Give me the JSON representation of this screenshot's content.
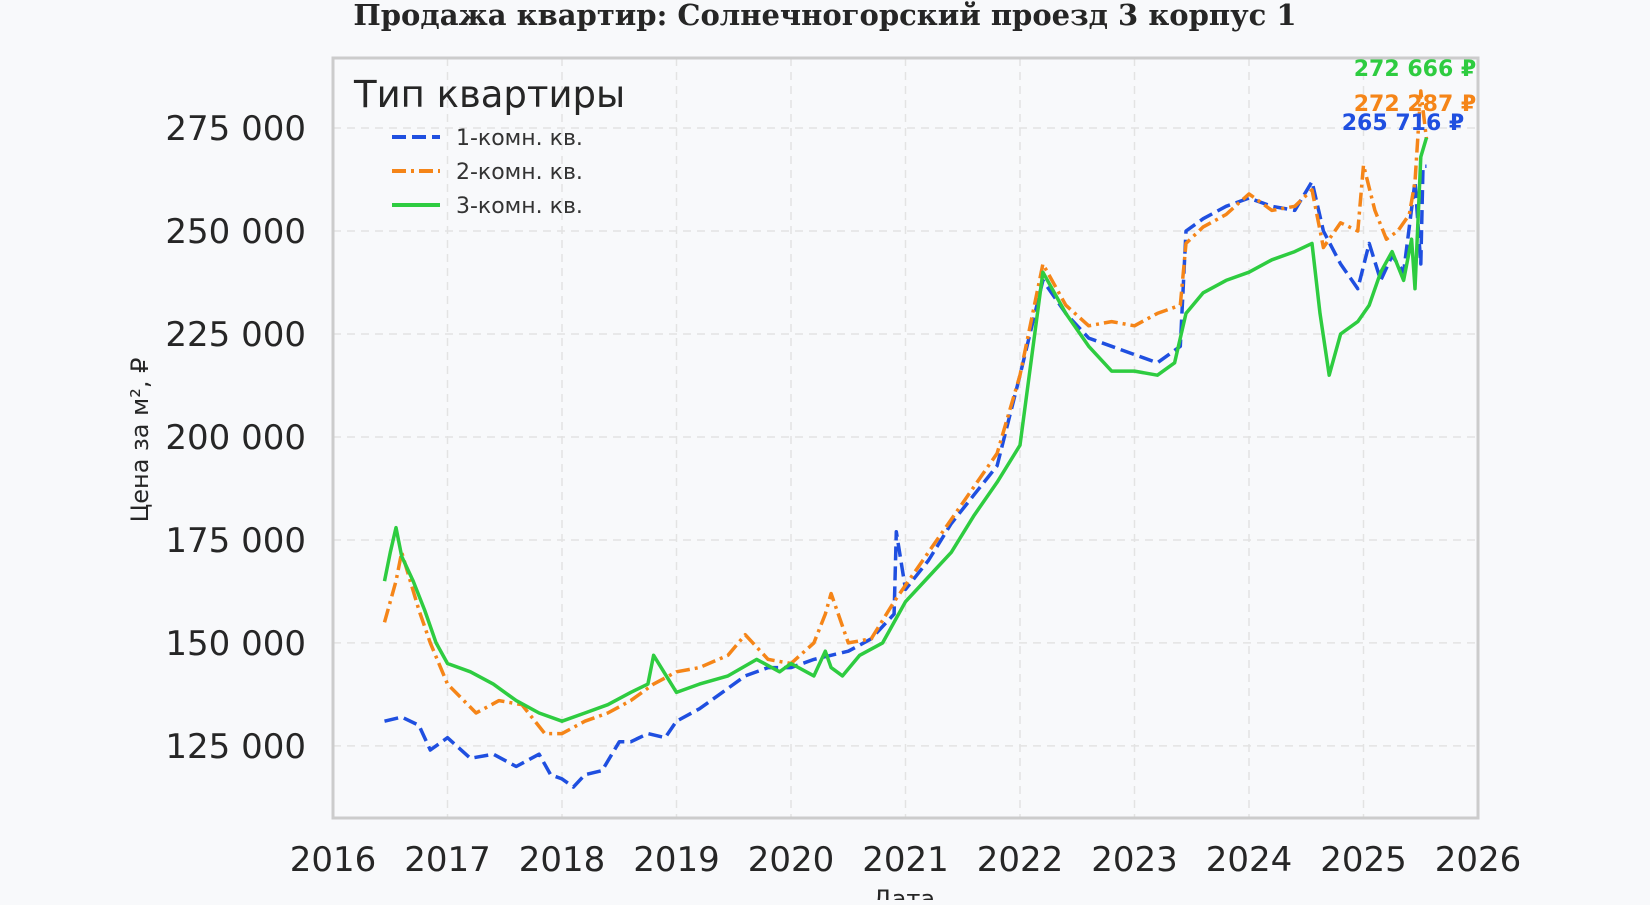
{
  "chart_data": {
    "type": "line",
    "title": "Продажа квартир: Солнечногорский проезд 3 корпус 1",
    "xlabel": "Дата",
    "ylabel": "Цена за м², ₽",
    "xlim": [
      2016,
      2026
    ],
    "ylim": [
      107500,
      292000
    ],
    "x_ticks": [
      "2016",
      "2017",
      "2018",
      "2019",
      "2020",
      "2021",
      "2022",
      "2023",
      "2024",
      "2025",
      "2026"
    ],
    "y_ticks": [
      "125 000",
      "150 000",
      "175 000",
      "200 000",
      "225 000",
      "250 000",
      "275 000"
    ],
    "y_tick_values": [
      125000,
      150000,
      175000,
      200000,
      225000,
      250000,
      275000
    ],
    "grid": true,
    "legend": {
      "title": "Тип квартиры",
      "position": "top-left"
    },
    "series": [
      {
        "name": "1-комн. кв.",
        "color": "#1f4fe0",
        "style": "dashed",
        "end_label": "265 716 ₽",
        "x": [
          2016.45,
          2016.6,
          2016.75,
          2016.85,
          2017.0,
          2017.2,
          2017.4,
          2017.6,
          2017.8,
          2017.9,
          2018.0,
          2018.1,
          2018.2,
          2018.35,
          2018.5,
          2018.6,
          2018.75,
          2018.9,
          2019.0,
          2019.2,
          2019.4,
          2019.6,
          2019.8,
          2020.0,
          2020.2,
          2020.35,
          2020.5,
          2020.7,
          2020.9,
          2020.92,
          2021.0,
          2021.2,
          2021.4,
          2021.6,
          2021.8,
          2022.0,
          2022.2,
          2022.4,
          2022.6,
          2022.8,
          2023.0,
          2023.2,
          2023.4,
          2023.45,
          2023.6,
          2023.8,
          2024.0,
          2024.2,
          2024.4,
          2024.55,
          2024.65,
          2024.8,
          2024.95,
          2025.05,
          2025.15,
          2025.25,
          2025.35,
          2025.45,
          2025.5,
          2025.52,
          2025.55
        ],
        "y": [
          131000,
          132000,
          130000,
          124000,
          127000,
          122000,
          123000,
          120000,
          123000,
          118000,
          117000,
          115000,
          118000,
          119000,
          126000,
          126000,
          128000,
          127000,
          131000,
          134000,
          138000,
          142000,
          144000,
          144000,
          146000,
          147000,
          148000,
          151000,
          157000,
          177000,
          163000,
          170000,
          179000,
          186000,
          193000,
          215000,
          238000,
          230000,
          224000,
          222000,
          220000,
          218000,
          222000,
          250000,
          253000,
          256000,
          258000,
          256000,
          255000,
          262000,
          250000,
          242000,
          236000,
          247000,
          238000,
          244000,
          240000,
          262000,
          242000,
          265716,
          265716
        ]
      },
      {
        "name": "2-комн. кв.",
        "color": "#f58518",
        "style": "dashdot",
        "end_label": "272 287 ₽",
        "x": [
          2016.45,
          2016.55,
          2016.6,
          2016.75,
          2016.85,
          2017.0,
          2017.25,
          2017.45,
          2017.65,
          2017.85,
          2018.0,
          2018.2,
          2018.4,
          2018.6,
          2018.8,
          2019.0,
          2019.2,
          2019.45,
          2019.6,
          2019.8,
          2020.0,
          2020.2,
          2020.3,
          2020.35,
          2020.5,
          2020.7,
          2020.9,
          2021.0,
          2021.2,
          2021.4,
          2021.6,
          2021.8,
          2022.0,
          2022.2,
          2022.4,
          2022.6,
          2022.8,
          2023.0,
          2023.2,
          2023.4,
          2023.45,
          2023.6,
          2023.8,
          2024.0,
          2024.2,
          2024.4,
          2024.55,
          2024.65,
          2024.8,
          2024.95,
          2025.0,
          2025.1,
          2025.2,
          2025.3,
          2025.4,
          2025.45,
          2025.5,
          2025.55
        ],
        "y": [
          155000,
          165000,
          172000,
          158000,
          150000,
          140000,
          133000,
          136000,
          135000,
          128000,
          128000,
          131000,
          133000,
          136000,
          140000,
          143000,
          144000,
          147000,
          152000,
          146000,
          145000,
          150000,
          157000,
          162000,
          150000,
          151000,
          160000,
          164000,
          172000,
          180000,
          188000,
          196000,
          215000,
          242000,
          232000,
          227000,
          228000,
          227000,
          230000,
          232000,
          247000,
          251000,
          254000,
          259000,
          255000,
          256000,
          260000,
          246000,
          252000,
          250000,
          266000,
          255000,
          248000,
          250000,
          254000,
          262000,
          284000,
          272287
        ]
      },
      {
        "name": "3-комн. кв.",
        "color": "#2ecc40",
        "style": "solid",
        "end_label": "272 666 ₽",
        "x": [
          2016.45,
          2016.5,
          2016.55,
          2016.6,
          2016.7,
          2016.8,
          2016.9,
          2017.0,
          2017.2,
          2017.4,
          2017.6,
          2017.8,
          2018.0,
          2018.2,
          2018.4,
          2018.6,
          2018.75,
          2018.8,
          2019.0,
          2019.2,
          2019.45,
          2019.7,
          2019.9,
          2020.0,
          2020.2,
          2020.3,
          2020.35,
          2020.45,
          2020.6,
          2020.8,
          2021.0,
          2021.2,
          2021.4,
          2021.6,
          2021.8,
          2022.0,
          2022.2,
          2022.4,
          2022.6,
          2022.8,
          2023.0,
          2023.2,
          2023.35,
          2023.45,
          2023.6,
          2023.8,
          2024.0,
          2024.2,
          2024.4,
          2024.55,
          2024.62,
          2024.7,
          2024.8,
          2024.95,
          2025.05,
          2025.15,
          2025.25,
          2025.35,
          2025.42,
          2025.45,
          2025.5,
          2025.55
        ],
        "y": [
          165000,
          172000,
          178000,
          171000,
          165000,
          158000,
          150000,
          145000,
          143000,
          140000,
          136000,
          133000,
          131000,
          133000,
          135000,
          138000,
          140000,
          147000,
          138000,
          140000,
          142000,
          146000,
          143000,
          145000,
          142000,
          148000,
          144000,
          142000,
          147000,
          150000,
          160000,
          166000,
          172000,
          181000,
          189000,
          198000,
          240000,
          230000,
          222000,
          216000,
          216000,
          215000,
          218000,
          230000,
          235000,
          238000,
          240000,
          243000,
          245000,
          247000,
          230000,
          215000,
          225000,
          228000,
          232000,
          240000,
          245000,
          238000,
          248000,
          236000,
          268000,
          272666
        ]
      }
    ]
  }
}
